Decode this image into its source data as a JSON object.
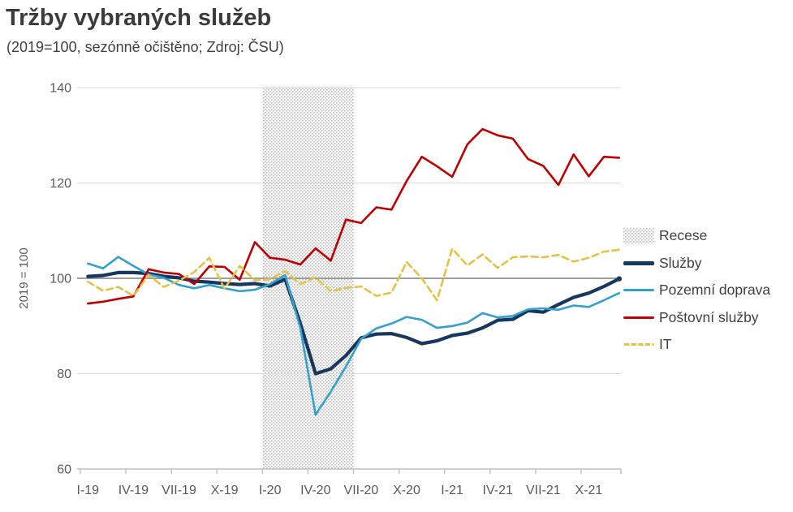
{
  "header": {
    "title": "Tržby vybraných služeb",
    "subtitle": "(2019=100, sezónně očištěno; Zdroj: ČSU)"
  },
  "colors": {
    "title_text": "#3b3b3b",
    "axis_text": "#595959",
    "legend_text": "#404040",
    "gridline": "#d9d9d9",
    "axis_line": "#bfbfbf",
    "reference_line": "#7f7f7f",
    "hatch_dot": "#8f8f8f",
    "sluzby": "#17375E",
    "pozemni_doprava": "#33A0CE",
    "postovni_sluzby": "#C00000",
    "it": "#E5C243"
  },
  "chart_data": {
    "type": "line",
    "title": "Tržby vybraných služeb",
    "subtitle": "(2019=100, sezónně očištěno; Zdroj: ČSU)",
    "ylabel": "2019 = 100",
    "ylim": [
      60,
      140
    ],
    "y_ticks": [
      60,
      80,
      100,
      120,
      140
    ],
    "reference_line": 100,
    "grid": "horizontal",
    "legend_position": "right",
    "x_tick_labels": [
      "I-19",
      "IV-19",
      "VII-19",
      "X-19",
      "I-20",
      "IV-20",
      "VII-20",
      "X-20",
      "I-21",
      "IV-21",
      "VII-21",
      "X-21"
    ],
    "x_tick_month_indexes": [
      0,
      3,
      6,
      9,
      12,
      15,
      18,
      21,
      24,
      27,
      30,
      33
    ],
    "categories": [
      "I-19",
      "II-19",
      "III-19",
      "IV-19",
      "V-19",
      "VI-19",
      "VII-19",
      "VIII-19",
      "IX-19",
      "X-19",
      "XI-19",
      "XII-19",
      "I-20",
      "II-20",
      "III-20",
      "IV-20",
      "V-20",
      "VI-20",
      "VII-20",
      "VIII-20",
      "IX-20",
      "X-20",
      "XI-20",
      "XII-20",
      "I-21",
      "II-21",
      "III-21",
      "IV-21",
      "V-21",
      "VI-21",
      "VII-21",
      "VIII-21",
      "IX-21",
      "X-21",
      "XI-21",
      "XII-21"
    ],
    "recession_band": {
      "label": "Recese",
      "from": "I-20",
      "to": "VI-20",
      "from_index": 12,
      "to_index": 17,
      "pattern": "dotted-hatch"
    },
    "series": [
      {
        "name": "Služby",
        "key": "sluzby",
        "style": "solid",
        "width": 4.2,
        "values": [
          100.4,
          100.6,
          101.2,
          101.2,
          101.0,
          100.4,
          100.1,
          99.4,
          99.2,
          98.9,
          98.7,
          98.9,
          98.4,
          99.8,
          90.5,
          80.0,
          81.0,
          83.8,
          87.5,
          88.3,
          88.4,
          87.6,
          86.3,
          86.9,
          88.0,
          88.5,
          89.6,
          91.2,
          91.4,
          93.2,
          92.9,
          94.5,
          96.0,
          96.9,
          98.3,
          99.9
        ],
        "end_marker": true
      },
      {
        "name": "Pozemní doprava",
        "key": "pozemni_doprava",
        "style": "solid",
        "width": 2.6,
        "values": [
          103.1,
          102.1,
          104.5,
          102.6,
          100.8,
          100.1,
          98.6,
          97.9,
          98.6,
          97.9,
          97.3,
          97.6,
          98.8,
          100.7,
          89.5,
          71.4,
          76.2,
          81.5,
          87.3,
          89.5,
          90.5,
          91.9,
          91.3,
          89.6,
          90.0,
          90.7,
          92.7,
          91.8,
          92.1,
          93.5,
          93.7,
          93.4,
          94.3,
          94.0,
          95.4,
          96.9
        ],
        "end_marker": false
      },
      {
        "name": "Poštovní služby",
        "key": "postovni_sluzby",
        "style": "solid",
        "width": 2.6,
        "values": [
          94.7,
          95.1,
          95.7,
          96.2,
          101.9,
          101.2,
          100.9,
          98.8,
          102.5,
          102.4,
          99.7,
          107.6,
          104.3,
          103.9,
          102.9,
          106.3,
          103.7,
          112.3,
          111.6,
          114.9,
          114.4,
          120.4,
          125.5,
          123.5,
          121.3,
          128.1,
          131.3,
          130.0,
          129.3,
          125.0,
          123.6,
          119.6,
          126.0,
          121.4,
          125.5,
          125.3
        ],
        "end_marker": false
      },
      {
        "name": "IT",
        "key": "it",
        "style": "dashed",
        "width": 2.6,
        "values": [
          99.3,
          97.4,
          98.2,
          96.3,
          100.7,
          98.2,
          99.5,
          101.3,
          104.3,
          97.8,
          102.6,
          99.6,
          99.8,
          101.5,
          98.8,
          100.2,
          97.3,
          98.0,
          98.3,
          96.3,
          97.0,
          103.4,
          100.0,
          95.4,
          106.2,
          102.7,
          105.0,
          102.2,
          104.4,
          104.6,
          104.4,
          104.9,
          103.5,
          104.3,
          105.6,
          106.0
        ],
        "end_marker": false
      }
    ],
    "legend": [
      {
        "label": "Recese",
        "swatch": "hatch",
        "key": "recese"
      },
      {
        "label": "Služby",
        "swatch": "line-thick",
        "key": "sluzby"
      },
      {
        "label": "Pozemní doprava",
        "swatch": "line",
        "key": "pozemni_doprava"
      },
      {
        "label": "Poštovní služby",
        "swatch": "line",
        "key": "postovni_sluzby"
      },
      {
        "label": "IT",
        "swatch": "line-dashed",
        "key": "it"
      }
    ]
  }
}
